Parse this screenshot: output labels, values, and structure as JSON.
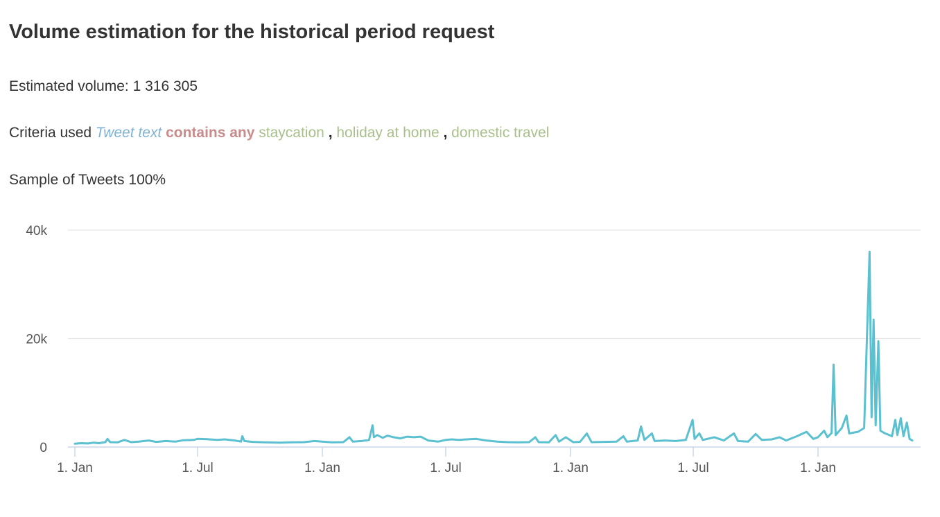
{
  "header": {
    "title": "Volume estimation for the historical period request"
  },
  "summary": {
    "volume_label": "Estimated volume:",
    "volume_value": "1 316 305",
    "criteria_label": "Criteria used",
    "criteria_field": "Tweet text",
    "criteria_operator": "contains any",
    "criteria_terms": [
      "staycation",
      "holiday at home",
      "domestic travel"
    ],
    "criteria_separator": ",",
    "sample_label": "Sample of Tweets",
    "sample_value": "100%"
  },
  "colors": {
    "series": "#5bc0cf",
    "gridline": "#e6e6e6",
    "field": "#7fb3d5",
    "operator": "#c98c8c",
    "term": "#a9c08c"
  },
  "chart_data": {
    "type": "line",
    "title": "",
    "xlabel": "",
    "ylabel": "",
    "ylim": [
      0,
      40000
    ],
    "grid": true,
    "legend": "none",
    "yticks": [
      {
        "value": 0,
        "label": "0"
      },
      {
        "value": 20000,
        "label": "20k"
      },
      {
        "value": 40000,
        "label": "40k"
      }
    ],
    "xticks": [
      {
        "date": "2019-01-01",
        "label": "1. Jan"
      },
      {
        "date": "2019-07-01",
        "label": "1. Jul"
      },
      {
        "date": "2020-01-01",
        "label": "1. Jan"
      },
      {
        "date": "2020-07-01",
        "label": "1. Jul"
      },
      {
        "date": "2021-01-01",
        "label": "1. Jan"
      },
      {
        "date": "2021-07-01",
        "label": "1. Jul"
      },
      {
        "date": "2022-01-01",
        "label": "1. Jan"
      }
    ],
    "x_range": [
      "2019-01-01",
      "2022-05-20"
    ],
    "series": [
      {
        "points": [
          [
            "2019-01-01",
            600
          ],
          [
            "2019-01-10",
            700
          ],
          [
            "2019-01-20",
            650
          ],
          [
            "2019-01-29",
            800
          ],
          [
            "2019-02-05",
            700
          ],
          [
            "2019-02-15",
            900
          ],
          [
            "2019-02-18",
            1500
          ],
          [
            "2019-02-22",
            900
          ],
          [
            "2019-03-05",
            850
          ],
          [
            "2019-03-15",
            1300
          ],
          [
            "2019-03-25",
            900
          ],
          [
            "2019-04-05",
            1000
          ],
          [
            "2019-04-20",
            1200
          ],
          [
            "2019-05-01",
            950
          ],
          [
            "2019-05-15",
            1100
          ],
          [
            "2019-05-30",
            1000
          ],
          [
            "2019-06-10",
            1250
          ],
          [
            "2019-06-25",
            1300
          ],
          [
            "2019-07-01",
            1500
          ],
          [
            "2019-07-15",
            1450
          ],
          [
            "2019-07-30",
            1300
          ],
          [
            "2019-08-10",
            1400
          ],
          [
            "2019-08-25",
            1200
          ],
          [
            "2019-09-03",
            1000
          ],
          [
            "2019-09-05",
            2000
          ],
          [
            "2019-09-08",
            1100
          ],
          [
            "2019-09-20",
            950
          ],
          [
            "2019-10-10",
            850
          ],
          [
            "2019-10-30",
            800
          ],
          [
            "2019-11-15",
            850
          ],
          [
            "2019-12-05",
            900
          ],
          [
            "2019-12-20",
            1100
          ],
          [
            "2020-01-01",
            1000
          ],
          [
            "2020-01-15",
            850
          ],
          [
            "2020-02-01",
            900
          ],
          [
            "2020-02-10",
            1800
          ],
          [
            "2020-02-15",
            1000
          ],
          [
            "2020-02-28",
            1100
          ],
          [
            "2020-03-10",
            1300
          ],
          [
            "2020-03-15",
            4000
          ],
          [
            "2020-03-17",
            1800
          ],
          [
            "2020-03-22",
            2200
          ],
          [
            "2020-03-30",
            1700
          ],
          [
            "2020-04-06",
            2100
          ],
          [
            "2020-04-15",
            1800
          ],
          [
            "2020-04-25",
            1600
          ],
          [
            "2020-05-05",
            1900
          ],
          [
            "2020-05-15",
            1800
          ],
          [
            "2020-05-25",
            1900
          ],
          [
            "2020-06-05",
            1200
          ],
          [
            "2020-06-20",
            1000
          ],
          [
            "2020-07-01",
            1300
          ],
          [
            "2020-07-10",
            1400
          ],
          [
            "2020-07-20",
            1300
          ],
          [
            "2020-08-01",
            1400
          ],
          [
            "2020-08-15",
            1500
          ],
          [
            "2020-08-30",
            1200
          ],
          [
            "2020-09-15",
            1000
          ],
          [
            "2020-09-30",
            900
          ],
          [
            "2020-10-15",
            850
          ],
          [
            "2020-11-01",
            900
          ],
          [
            "2020-11-10",
            1800
          ],
          [
            "2020-11-15",
            900
          ],
          [
            "2020-11-30",
            850
          ],
          [
            "2020-12-10",
            2200
          ],
          [
            "2020-12-15",
            1000
          ],
          [
            "2020-12-25",
            1800
          ],
          [
            "2021-01-05",
            900
          ],
          [
            "2021-01-15",
            950
          ],
          [
            "2021-01-25",
            2500
          ],
          [
            "2021-02-01",
            900
          ],
          [
            "2021-02-20",
            950
          ],
          [
            "2021-03-10",
            1000
          ],
          [
            "2021-03-20",
            2000
          ],
          [
            "2021-03-25",
            1000
          ],
          [
            "2021-04-10",
            1200
          ],
          [
            "2021-04-15",
            3800
          ],
          [
            "2021-04-20",
            1300
          ],
          [
            "2021-05-01",
            2500
          ],
          [
            "2021-05-05",
            1100
          ],
          [
            "2021-05-20",
            1200
          ],
          [
            "2021-06-05",
            1100
          ],
          [
            "2021-06-20",
            1300
          ],
          [
            "2021-06-30",
            5000
          ],
          [
            "2021-07-03",
            1500
          ],
          [
            "2021-07-10",
            2500
          ],
          [
            "2021-07-15",
            1300
          ],
          [
            "2021-08-01",
            1800
          ],
          [
            "2021-08-15",
            1200
          ],
          [
            "2021-08-30",
            2500
          ],
          [
            "2021-09-05",
            1100
          ],
          [
            "2021-09-20",
            1000
          ],
          [
            "2021-10-01",
            2400
          ],
          [
            "2021-10-10",
            1300
          ],
          [
            "2021-10-25",
            1400
          ],
          [
            "2021-11-05",
            1800
          ],
          [
            "2021-11-15",
            1200
          ],
          [
            "2021-12-01",
            2000
          ],
          [
            "2021-12-15",
            2800
          ],
          [
            "2021-12-25",
            1500
          ],
          [
            "2022-01-01",
            1800
          ],
          [
            "2022-01-10",
            3000
          ],
          [
            "2022-01-15",
            1800
          ],
          [
            "2022-01-21",
            2600
          ],
          [
            "2022-01-24",
            15200
          ],
          [
            "2022-01-27",
            2200
          ],
          [
            "2022-02-05",
            3500
          ],
          [
            "2022-02-12",
            5800
          ],
          [
            "2022-02-16",
            2500
          ],
          [
            "2022-03-01",
            2800
          ],
          [
            "2022-03-10",
            3500
          ],
          [
            "2022-03-18",
            36000
          ],
          [
            "2022-03-21",
            5500
          ],
          [
            "2022-03-24",
            23500
          ],
          [
            "2022-03-27",
            4000
          ],
          [
            "2022-03-31",
            19500
          ],
          [
            "2022-04-03",
            3000
          ],
          [
            "2022-04-10",
            2500
          ],
          [
            "2022-04-20",
            2000
          ],
          [
            "2022-04-25",
            5000
          ],
          [
            "2022-04-28",
            2200
          ],
          [
            "2022-05-03",
            5300
          ],
          [
            "2022-05-07",
            2000
          ],
          [
            "2022-05-12",
            4500
          ],
          [
            "2022-05-16",
            1500
          ],
          [
            "2022-05-20",
            1200
          ]
        ]
      }
    ]
  }
}
